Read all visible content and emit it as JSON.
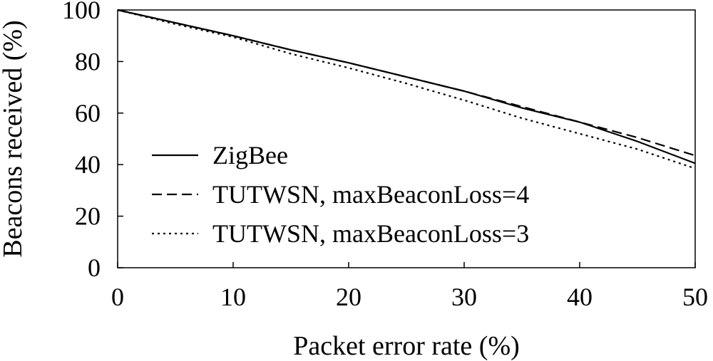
{
  "chart_data": {
    "type": "line",
    "title": "",
    "xlabel": "Packet error rate (%)",
    "ylabel": "Beacons received (%)",
    "xlim": [
      0,
      50
    ],
    "ylim": [
      0,
      100
    ],
    "xticks": [
      "0",
      "10",
      "20",
      "30",
      "40",
      "50"
    ],
    "yticks": [
      "0",
      "20",
      "40",
      "60",
      "80",
      "100"
    ],
    "grid": false,
    "legend_position": "lower-left",
    "x": [
      0,
      5,
      10,
      15,
      20,
      25,
      30,
      35,
      40,
      45,
      50
    ],
    "series": [
      {
        "name": "ZigBee",
        "style": "solid",
        "values": [
          100,
          95,
          90,
          84.5,
          79.5,
          74,
          68.5,
          62,
          56.5,
          49,
          40.5
        ]
      },
      {
        "name": "TUTWSN, maxBeaconLoss=4",
        "style": "dashed",
        "values": [
          100,
          95,
          90,
          84.5,
          79.5,
          74,
          68.5,
          62.5,
          56.5,
          50.5,
          43.5
        ]
      },
      {
        "name": "TUTWSN, maxBeaconLoss=3",
        "style": "dotted",
        "values": [
          100,
          94.5,
          89.5,
          83,
          77.5,
          71.5,
          65,
          58,
          52,
          46,
          38.5
        ]
      }
    ]
  }
}
